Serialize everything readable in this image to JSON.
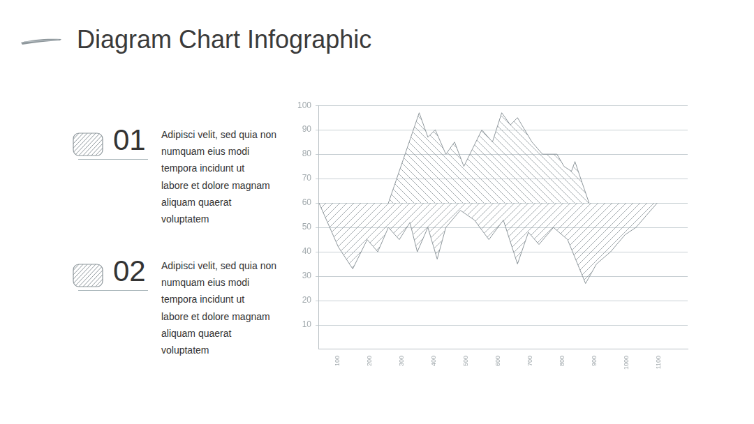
{
  "page": {
    "title": "Diagram Chart Infographic",
    "items": [
      {
        "number": "01",
        "text_lines": [
          "Adipisci velit, sed quia non",
          "numquam eius modi",
          "tempora incidunt ut",
          "labore et dolore magnam",
          "aliquam quaerat",
          "voluptatem"
        ]
      },
      {
        "number": "02",
        "text_lines": [
          "Adipisci velit, sed quia non",
          "numquam eius modi",
          "tempora incidunt ut",
          "labore et dolore magnam",
          "aliquam quaerat",
          "voluptatem"
        ]
      }
    ]
  },
  "chart_data": {
    "type": "area",
    "baseline": 60,
    "grid": true,
    "xlim": [
      40,
      1190
    ],
    "xticks": [
      100,
      200,
      300,
      400,
      500,
      600,
      700,
      800,
      900,
      1000,
      1100
    ],
    "ylim": [
      0,
      100
    ],
    "yticks": [
      10,
      20,
      30,
      40,
      50,
      60,
      70,
      80,
      90,
      100
    ],
    "series": [
      {
        "color": "#8e979c",
        "x": [
          258,
          354,
          381,
          404,
          437,
          464,
          493,
          549,
          582,
          611,
          638,
          660,
          705,
          738,
          783,
          805,
          828,
          839,
          857,
          883
        ],
        "values": [
          60,
          97,
          87,
          90,
          80,
          85,
          75,
          90,
          85,
          97,
          92,
          95,
          85,
          80,
          80,
          75,
          73,
          77,
          70,
          60
        ]
      },
      {
        "color": "#8e979c",
        "x": [
          42,
          102,
          147,
          192,
          225,
          258,
          292,
          325,
          348,
          381,
          410,
          437,
          482,
          526,
          571,
          616,
          660,
          694,
          727,
          772,
          816,
          872,
          906,
          950,
          995,
          1029,
          1062,
          1095
        ],
        "values": [
          60,
          42,
          33,
          45,
          40,
          50,
          45,
          52,
          40,
          50,
          37,
          50,
          57,
          53,
          45,
          53,
          35,
          48,
          43,
          50,
          45,
          27,
          35,
          40,
          47,
          50,
          55,
          60
        ]
      }
    ]
  }
}
